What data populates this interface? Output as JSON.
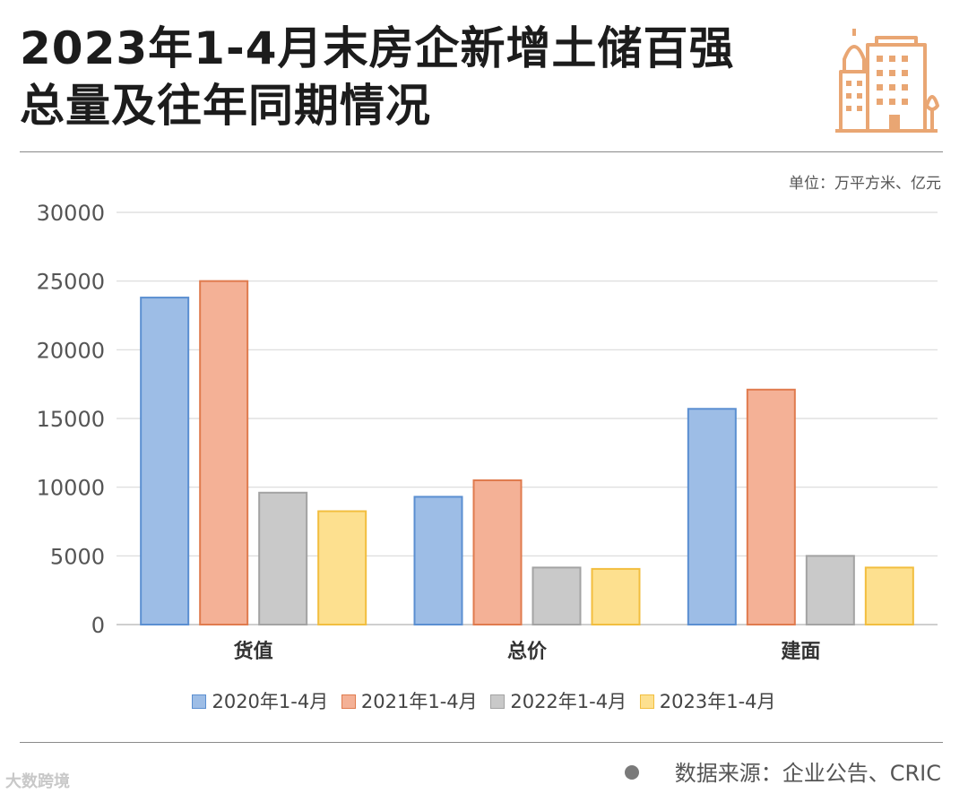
{
  "header": {
    "title_line1": "2023年1-4月末房企新增土储百强",
    "title_line2": "总量及往年同期情况",
    "icon": "building-icon"
  },
  "unit_note": "单位：万平方米、亿元",
  "colors": {
    "accent": "#e9a673",
    "gridline": "#d9d9d9",
    "axis_text": "#555555"
  },
  "chart_data": {
    "type": "bar",
    "categories": [
      "货值",
      "总价",
      "建面"
    ],
    "ylim": [
      0,
      30000
    ],
    "yticks": [
      0,
      5000,
      10000,
      15000,
      20000,
      25000,
      30000
    ],
    "series": [
      {
        "name": "2020年1-4月",
        "values": [
          23800,
          9300,
          15700
        ],
        "fill": "#9dbde6",
        "stroke": "#5b8fd1"
      },
      {
        "name": "2021年1-4月",
        "values": [
          25000,
          10500,
          17100
        ],
        "fill": "#f4b196",
        "stroke": "#e07b4e"
      },
      {
        "name": "2022年1-4月",
        "values": [
          9600,
          4150,
          5000
        ],
        "fill": "#c9c9c9",
        "stroke": "#a3a3a3"
      },
      {
        "name": "2023年1-4月",
        "values": [
          8250,
          4050,
          4150
        ],
        "fill": "#fde08f",
        "stroke": "#f2be3f"
      }
    ],
    "grid": true,
    "legend_position": "bottom"
  },
  "footer": {
    "source": "数据来源：企业公告、CRIC",
    "logo_text": "大数跨境"
  }
}
